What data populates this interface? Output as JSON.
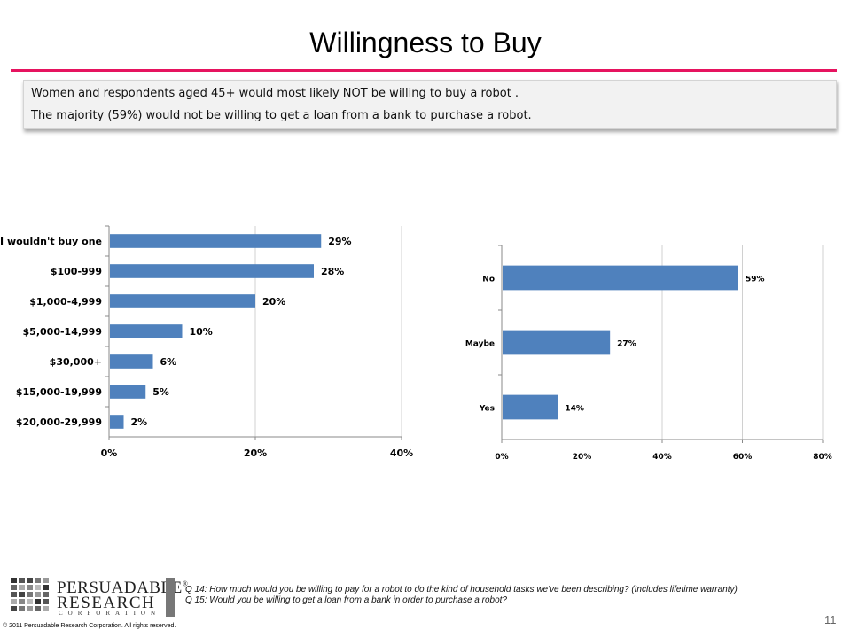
{
  "slide": {
    "title": "Willingness to Buy",
    "accent_color": "#e6135f",
    "bar_color": "#4f81bd",
    "page_number": "11"
  },
  "callout": {
    "line1": "Women and respondents aged 45+ would most likely NOT be willing to buy a robot .",
    "line2": "The majority (59%) would not be willing to get a loan from a bank to purchase  a robot."
  },
  "chart_data": [
    {
      "type": "bar",
      "orientation": "horizontal",
      "categories": [
        "I wouldn't buy one",
        "$100-999",
        "$1,000-4,999",
        "$5,000-14,999",
        "$30,000+",
        "$15,000-19,999",
        "$20,000-29,999"
      ],
      "values": [
        29,
        28,
        20,
        10,
        6,
        5,
        2
      ],
      "data_labels": [
        "29%",
        "28%",
        "20%",
        "10%",
        "6%",
        "5%",
        "2%"
      ],
      "xlim": [
        0,
        40
      ],
      "x_ticks": [
        "0%",
        "20%",
        "40%"
      ],
      "grid": "vertical"
    },
    {
      "type": "bar",
      "orientation": "horizontal",
      "categories": [
        "No",
        "Maybe",
        "Yes"
      ],
      "values": [
        59,
        27,
        14
      ],
      "data_labels": [
        "59%",
        "27%",
        "14%"
      ],
      "xlim": [
        0,
        80
      ],
      "x_ticks": [
        "0%",
        "20%",
        "40%",
        "60%",
        "80%"
      ],
      "grid": "vertical"
    }
  ],
  "footer": {
    "logo_line1": "PERSUADABLE",
    "logo_reg": "®",
    "logo_line2": "RESEARCH",
    "logo_line3": "CORPORATION",
    "copyright": "© 2011 Persuadable  Research Corporation.  All rights reserved.",
    "q14": "Q 14:  How much would you be willing to pay for a robot to do the kind of household tasks we've been describing?  (Includes lifetime warranty)",
    "q15": "Q 15:  Would you be willing to get a loan from a bank in order to purchase a robot?"
  }
}
